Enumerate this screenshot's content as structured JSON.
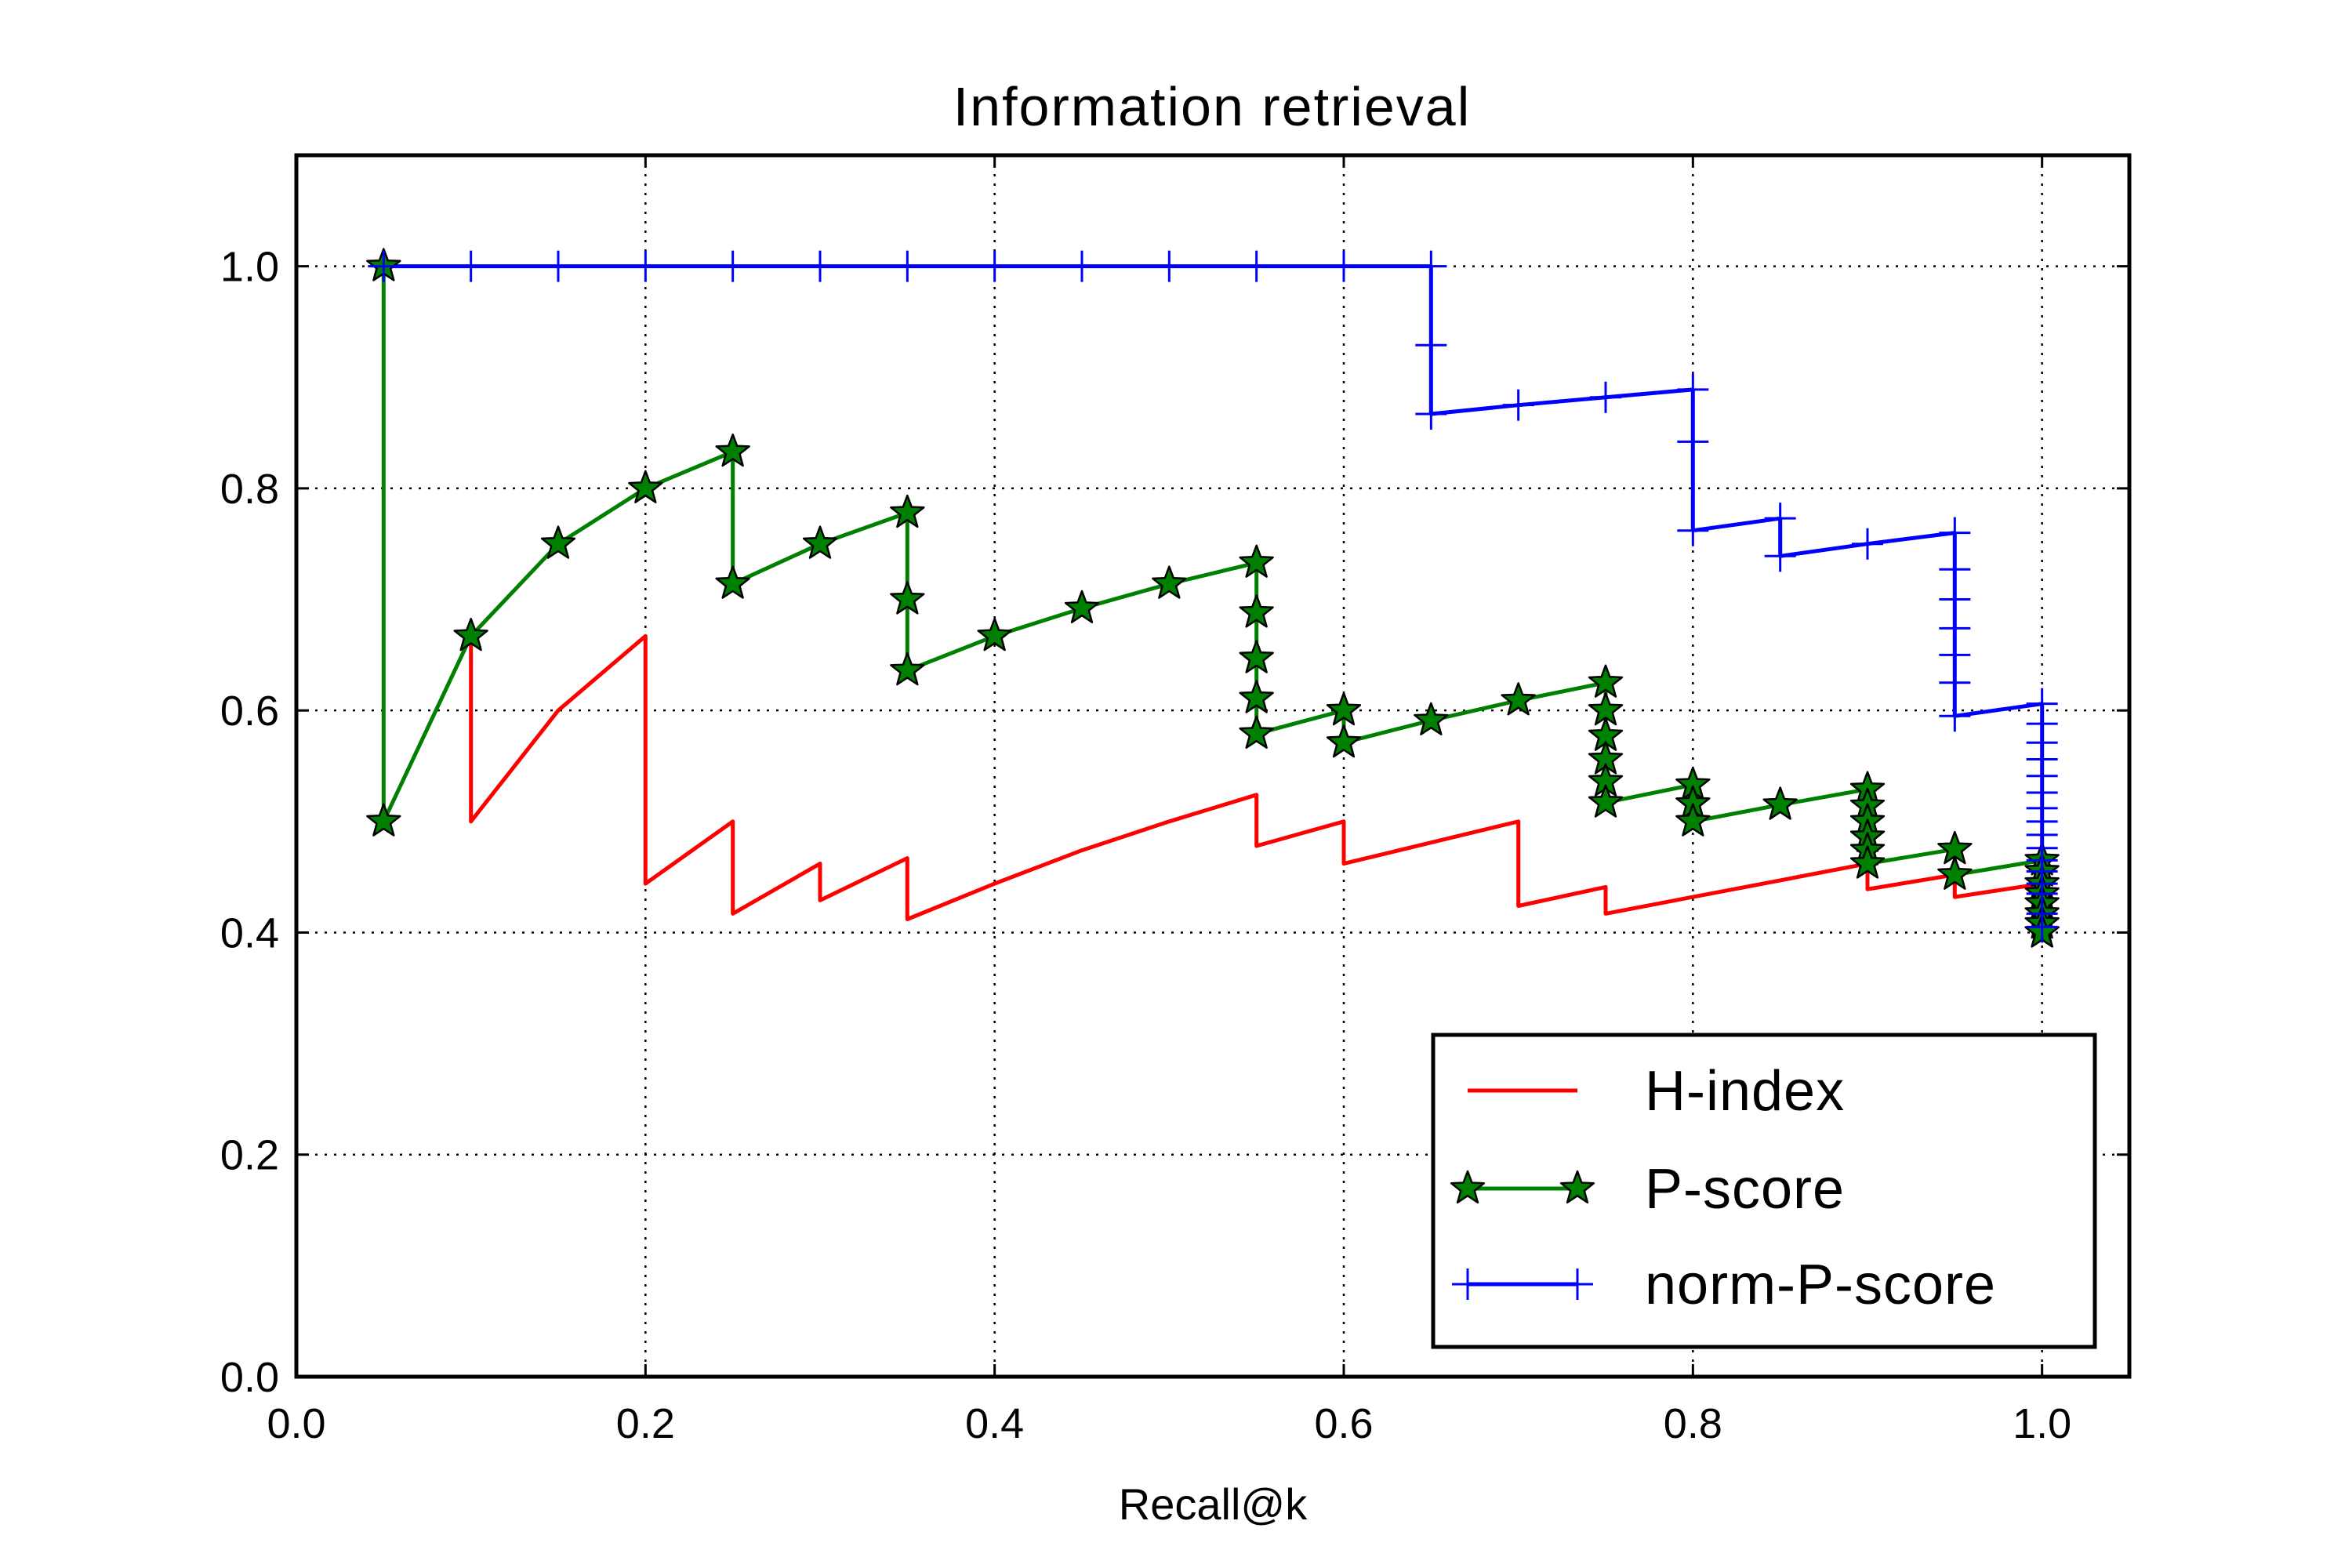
{
  "chart_data": {
    "type": "line",
    "title": "Information retrieval",
    "xlabel": "Recall@k",
    "ylabel": "",
    "xlim": [
      0.0,
      1.05
    ],
    "ylim": [
      0.0,
      1.1
    ],
    "xticks": [
      0.0,
      0.2,
      0.4,
      0.6,
      0.8,
      1.0
    ],
    "xtick_labels": [
      "0.0",
      "0.2",
      "0.4",
      "0.6",
      "0.8",
      "1.0"
    ],
    "yticks": [
      0.0,
      0.2,
      0.4,
      0.6,
      0.8,
      1.0
    ],
    "ytick_labels": [
      "0.0",
      "0.2",
      "0.4",
      "0.6",
      "0.8",
      "1.0"
    ],
    "grid": true,
    "legend_position": "lower-right",
    "series": [
      {
        "name": "H-index",
        "color": "#ff0000",
        "marker": "none",
        "x": [
          0.1,
          0.1,
          0.15,
          0.2,
          0.2,
          0.25,
          0.25,
          0.3,
          0.3,
          0.35,
          0.35,
          0.4,
          0.45,
          0.5,
          0.55,
          0.55,
          0.6,
          0.6,
          0.65,
          0.7,
          0.7,
          0.75,
          0.75,
          0.8,
          0.85,
          0.9,
          0.9,
          0.95,
          0.95,
          1.0
        ],
        "y": [
          0.667,
          0.5,
          0.6,
          0.667,
          0.444,
          0.5,
          0.417,
          0.462,
          0.429,
          0.467,
          0.412,
          0.444,
          0.474,
          0.5,
          0.524,
          0.478,
          0.5,
          0.462,
          0.481,
          0.5,
          0.424,
          0.441,
          0.417,
          0.432,
          0.447,
          0.462,
          0.439,
          0.452,
          0.432,
          0.444
        ]
      },
      {
        "name": "P-score",
        "color": "#008000",
        "marker": "star",
        "x": [
          0.05,
          0.05,
          0.1,
          0.15,
          0.2,
          0.25,
          0.25,
          0.3,
          0.35,
          0.35,
          0.35,
          0.4,
          0.45,
          0.5,
          0.55,
          0.55,
          0.55,
          0.55,
          0.55,
          0.6,
          0.6,
          0.65,
          0.7,
          0.75,
          0.75,
          0.75,
          0.75,
          0.75,
          0.75,
          0.8,
          0.8,
          0.8,
          0.85,
          0.9,
          0.9,
          0.9,
          0.9,
          0.9,
          0.9,
          0.95,
          0.95,
          1.0,
          1.0,
          1.0,
          1.0,
          1.0,
          1.0,
          1.0,
          1.0,
          1.0,
          1.0
        ],
        "y": [
          1.0,
          0.5,
          0.667,
          0.75,
          0.8,
          0.833,
          0.714,
          0.75,
          0.778,
          0.7,
          0.636,
          0.667,
          0.692,
          0.714,
          0.733,
          0.688,
          0.647,
          0.611,
          0.579,
          0.6,
          0.571,
          0.591,
          0.609,
          0.625,
          0.6,
          0.577,
          0.556,
          0.536,
          0.517,
          0.533,
          0.516,
          0.5,
          0.515,
          0.529,
          0.514,
          0.5,
          0.486,
          0.474,
          0.462,
          0.475,
          0.452,
          0.465,
          0.455,
          0.444,
          0.435,
          0.426,
          0.417,
          0.408,
          0.4,
          0.4,
          0.4
        ]
      },
      {
        "name": "norm-P-score",
        "color": "#0000ff",
        "marker": "plus",
        "x": [
          0.05,
          0.1,
          0.15,
          0.2,
          0.25,
          0.3,
          0.35,
          0.4,
          0.45,
          0.5,
          0.55,
          0.6,
          0.65,
          0.65,
          0.65,
          0.7,
          0.75,
          0.8,
          0.8,
          0.8,
          0.85,
          0.85,
          0.9,
          0.95,
          0.95,
          0.95,
          0.95,
          0.95,
          0.95,
          0.95,
          1.0,
          1.0,
          1.0,
          1.0,
          1.0,
          1.0,
          1.0,
          1.0,
          1.0,
          1.0,
          1.0,
          1.0,
          1.0,
          1.0,
          1.0,
          1.0
        ],
        "y": [
          1.0,
          1.0,
          1.0,
          1.0,
          1.0,
          1.0,
          1.0,
          1.0,
          1.0,
          1.0,
          1.0,
          1.0,
          1.0,
          0.929,
          0.867,
          0.875,
          0.882,
          0.889,
          0.842,
          0.762,
          0.773,
          0.739,
          0.75,
          0.76,
          0.727,
          0.7,
          0.674,
          0.65,
          0.625,
          0.595,
          0.606,
          0.588,
          0.571,
          0.556,
          0.541,
          0.526,
          0.512,
          0.5,
          0.488,
          0.476,
          0.465,
          0.455,
          0.444,
          0.435,
          0.417,
          0.405
        ]
      }
    ]
  }
}
